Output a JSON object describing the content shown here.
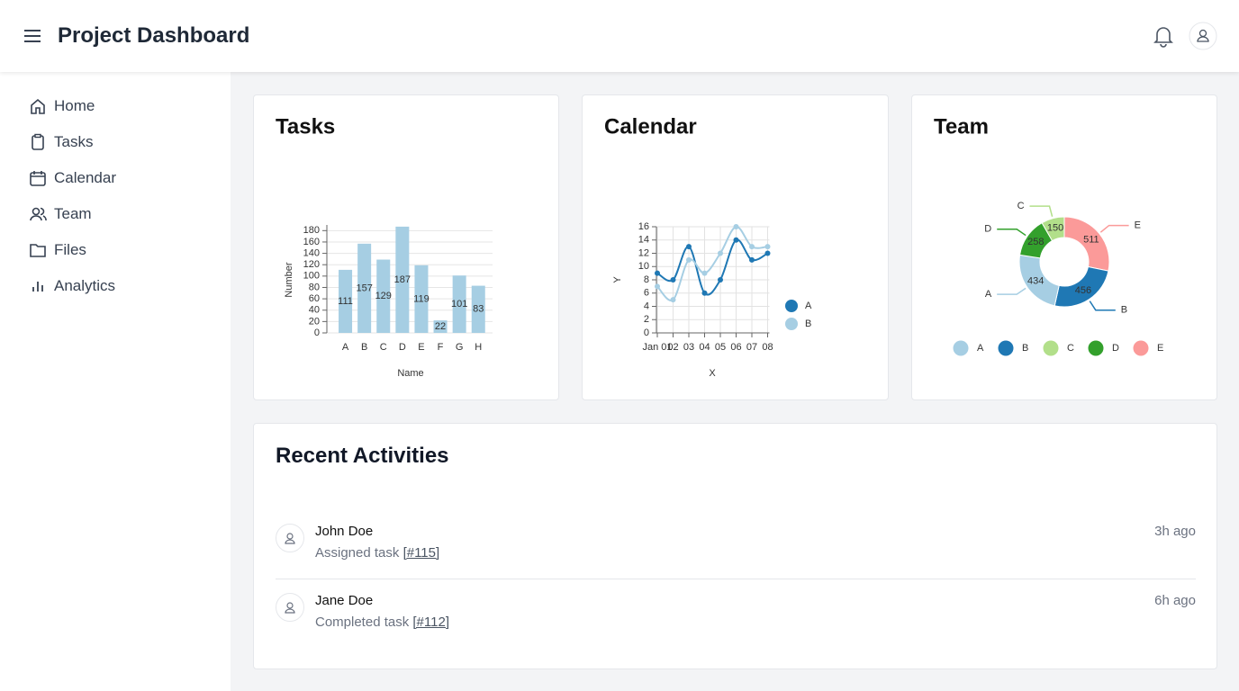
{
  "header": {
    "title": "Project Dashboard"
  },
  "nav": [
    "Home",
    "Tasks",
    "Calendar",
    "Team",
    "Files",
    "Analytics"
  ],
  "chart_data": [
    {
      "type": "bar",
      "title": "Tasks",
      "x_label": "Name",
      "y_label": "Number",
      "categories": [
        "A",
        "B",
        "C",
        "D",
        "E",
        "F",
        "G",
        "H"
      ],
      "values": [
        111,
        157,
        129,
        187,
        119,
        22,
        101,
        83
      ],
      "color": "#a6cee3",
      "ylim": [
        0,
        190
      ],
      "yticks": [
        0,
        20,
        40,
        60,
        80,
        100,
        120,
        140,
        160,
        180
      ],
      "grid": true
    },
    {
      "type": "line",
      "title": "Calendar",
      "x_label": "X",
      "y_label": "Y",
      "categories": [
        "Jan 01",
        "02",
        "03",
        "04",
        "05",
        "06",
        "07",
        "08"
      ],
      "series": [
        {
          "name": "A",
          "color": "#1f78b4",
          "values": [
            9,
            8,
            13,
            6,
            8,
            14,
            11,
            12
          ]
        },
        {
          "name": "B",
          "color": "#a6cee3",
          "values": [
            7,
            5,
            11,
            9,
            12,
            16,
            13,
            13
          ]
        }
      ],
      "ylim": [
        0,
        16
      ],
      "yticks": [
        0,
        2,
        4,
        6,
        8,
        10,
        12,
        14,
        16
      ],
      "grid": true,
      "legend": "right"
    },
    {
      "type": "donut",
      "title": "Team",
      "categories": [
        "A",
        "B",
        "C",
        "D",
        "E"
      ],
      "values": [
        434,
        456,
        150,
        258,
        511
      ],
      "colors": [
        "#a6cee3",
        "#1f78b4",
        "#b2df8a",
        "#33a02c",
        "#fb9a99"
      ],
      "legend": "bottom"
    }
  ],
  "activities_title": "Recent Activities",
  "activities": [
    {
      "name": "John Doe",
      "action": "Assigned task",
      "ref": "[#115]",
      "time": "3h ago"
    },
    {
      "name": "Jane Doe",
      "action": "Completed task",
      "ref": "[#112]",
      "time": "6h ago"
    }
  ]
}
